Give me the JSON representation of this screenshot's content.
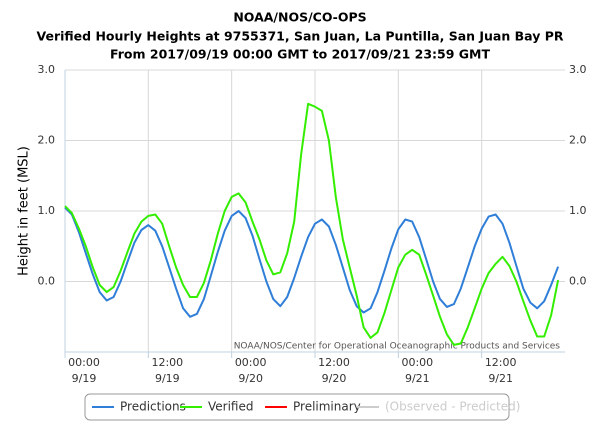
{
  "chart_data": {
    "type": "line",
    "title": "NOAA/NOS/CO-OPS",
    "subtitle": [
      "Verified Hourly Heights at 9755371, San Juan, La Puntilla, San Juan Bay PR",
      "From 2017/09/19 00:00 GMT to 2017/09/21 23:59 GMT"
    ],
    "ylabel": "Height in feet (MSL)",
    "credit": "NOAA/NOS/Center for Operational Oceanographic Products and Services",
    "x": [
      "9/19 00:00",
      "9/19 01:00",
      "9/19 02:00",
      "9/19 03:00",
      "9/19 04:00",
      "9/19 05:00",
      "9/19 06:00",
      "9/19 07:00",
      "9/19 08:00",
      "9/19 09:00",
      "9/19 10:00",
      "9/19 11:00",
      "9/19 12:00",
      "9/19 13:00",
      "9/19 14:00",
      "9/19 15:00",
      "9/19 16:00",
      "9/19 17:00",
      "9/19 18:00",
      "9/19 19:00",
      "9/19 20:00",
      "9/19 21:00",
      "9/19 22:00",
      "9/19 23:00",
      "9/20 00:00",
      "9/20 01:00",
      "9/20 02:00",
      "9/20 03:00",
      "9/20 04:00",
      "9/20 05:00",
      "9/20 06:00",
      "9/20 07:00",
      "9/20 08:00",
      "9/20 09:00",
      "9/20 10:00",
      "9/20 11:00",
      "9/20 12:00",
      "9/20 13:00",
      "9/20 14:00",
      "9/20 15:00",
      "9/20 16:00",
      "9/20 17:00",
      "9/20 18:00",
      "9/20 19:00",
      "9/20 20:00",
      "9/20 21:00",
      "9/20 22:00",
      "9/20 23:00",
      "9/21 00:00",
      "9/21 01:00",
      "9/21 02:00",
      "9/21 03:00",
      "9/21 04:00",
      "9/21 05:00",
      "9/21 06:00",
      "9/21 07:00",
      "9/21 08:00",
      "9/21 09:00",
      "9/21 10:00",
      "9/21 11:00",
      "9/21 12:00",
      "9/21 13:00",
      "9/21 14:00",
      "9/21 15:00",
      "9/21 16:00",
      "9/21 17:00",
      "9/21 18:00",
      "9/21 19:00",
      "9/21 20:00",
      "9/21 21:00",
      "9/21 22:00",
      "9/21 23:00"
    ],
    "xticks": [
      {
        "value": "9/19 00:00",
        "label": [
          "00:00",
          "9/19"
        ]
      },
      {
        "value": "9/19 12:00",
        "label": [
          "12:00",
          "9/19"
        ]
      },
      {
        "value": "9/20 00:00",
        "label": [
          "00:00",
          "9/20"
        ]
      },
      {
        "value": "9/20 12:00",
        "label": [
          "12:00",
          "9/20"
        ]
      },
      {
        "value": "9/21 00:00",
        "label": [
          "00:00",
          "9/21"
        ]
      },
      {
        "value": "9/21 12:00",
        "label": [
          "12:00",
          "9/21"
        ]
      }
    ],
    "ylim": [
      -1,
      3
    ],
    "yticks": [
      {
        "value": 0,
        "label": "0.0"
      },
      {
        "value": 1,
        "label": "1.0"
      },
      {
        "value": 2,
        "label": "2.0"
      },
      {
        "value": 3,
        "label": "3.0"
      }
    ],
    "grid": true,
    "series": [
      {
        "name": "Predictions",
        "color": "#2f7ed8",
        "values": [
          1.05,
          0.95,
          0.7,
          0.4,
          0.1,
          -0.15,
          -0.27,
          -0.22,
          0.0,
          0.28,
          0.55,
          0.73,
          0.8,
          0.72,
          0.5,
          0.2,
          -0.1,
          -0.38,
          -0.5,
          -0.46,
          -0.25,
          0.08,
          0.42,
          0.72,
          0.93,
          1.0,
          0.9,
          0.65,
          0.32,
          0.0,
          -0.25,
          -0.35,
          -0.22,
          0.05,
          0.35,
          0.63,
          0.82,
          0.88,
          0.78,
          0.52,
          0.2,
          -0.12,
          -0.35,
          -0.44,
          -0.38,
          -0.15,
          0.15,
          0.47,
          0.74,
          0.88,
          0.85,
          0.63,
          0.32,
          0.0,
          -0.25,
          -0.36,
          -0.32,
          -0.1,
          0.2,
          0.5,
          0.75,
          0.92,
          0.95,
          0.82,
          0.55,
          0.22,
          -0.1,
          -0.3,
          -0.38,
          -0.28,
          -0.05,
          0.21
        ]
      },
      {
        "name": "Verified",
        "color": "#33ee00",
        "values": [
          1.07,
          0.97,
          0.75,
          0.5,
          0.2,
          -0.05,
          -0.15,
          -0.08,
          0.15,
          0.42,
          0.68,
          0.85,
          0.93,
          0.95,
          0.82,
          0.5,
          0.2,
          -0.05,
          -0.22,
          -0.22,
          -0.02,
          0.3,
          0.68,
          1.0,
          1.2,
          1.25,
          1.12,
          0.85,
          0.6,
          0.3,
          0.1,
          0.13,
          0.4,
          0.85,
          1.8,
          2.52,
          2.48,
          2.42,
          2.0,
          1.2,
          0.6,
          0.2,
          -0.2,
          -0.65,
          -0.8,
          -0.72,
          -0.45,
          -0.12,
          0.2,
          0.38,
          0.45,
          0.38,
          0.1,
          -0.2,
          -0.5,
          -0.75,
          -0.9,
          -0.88,
          -0.65,
          -0.38,
          -0.1,
          0.12,
          0.25,
          0.35,
          0.22,
          0.0,
          -0.28,
          -0.55,
          -0.78,
          -0.78,
          -0.48,
          0.02
        ]
      },
      {
        "name": "Preliminary",
        "color": "#ff0000",
        "values": [
          null,
          null,
          null,
          null,
          null,
          null,
          null,
          null,
          null,
          null,
          null,
          null,
          null,
          null,
          null,
          null,
          null,
          null,
          null,
          null,
          null,
          null,
          null,
          null,
          null,
          null,
          null,
          null,
          null,
          null,
          null,
          null,
          null,
          null,
          null,
          null,
          null,
          null,
          null,
          null,
          null,
          null,
          null,
          null,
          null,
          null,
          null,
          null,
          null,
          null,
          null,
          null,
          null,
          null,
          null,
          null,
          null,
          null,
          null,
          null,
          null,
          null,
          null,
          null,
          null,
          null,
          null,
          null,
          null,
          null,
          null,
          null
        ]
      },
      {
        "name": "(Observed - Predicted)",
        "color": "#cccccc",
        "visible": false,
        "values": [
          null,
          null,
          null,
          null,
          null,
          null,
          null,
          null,
          null,
          null,
          null,
          null,
          null,
          null,
          null,
          null,
          null,
          null,
          null,
          null,
          null,
          null,
          null,
          null,
          null,
          null,
          null,
          null,
          null,
          null,
          null,
          null,
          null,
          null,
          null,
          null,
          null,
          null,
          null,
          null,
          null,
          null,
          null,
          null,
          null,
          null,
          null,
          null,
          null,
          null,
          null,
          null,
          null,
          null,
          null,
          null,
          null,
          null,
          null,
          null,
          null,
          null,
          null,
          null,
          null,
          null,
          null,
          null,
          null,
          null,
          null,
          null
        ]
      }
    ]
  }
}
